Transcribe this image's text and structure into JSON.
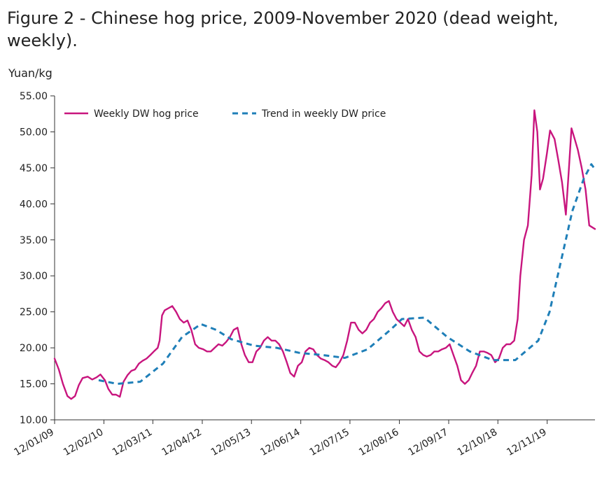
{
  "chart_data": {
    "type": "line",
    "title": "Figure 2 - Chinese hog price, 2009-November 2020 (dead weight, weekly).",
    "ylabel": "Yuan/kg",
    "ylim": [
      10,
      55
    ],
    "y_ticks": [
      "10.00",
      "15.00",
      "20.00",
      "25.00",
      "30.00",
      "35.00",
      "40.00",
      "45.00",
      "50.00",
      "55.00"
    ],
    "x_start": "2009-01-12",
    "x_end": "2020-11-30",
    "x_ticks": [
      "12/01/09",
      "12/02/10",
      "12/03/11",
      "12/04/12",
      "12/05/13",
      "12/06/14",
      "12/07/15",
      "12/08/16",
      "12/09/17",
      "12/10/18",
      "12/11/19"
    ],
    "x_tick_dates": [
      "2009-01-12",
      "2010-02-12",
      "2011-03-12",
      "2012-04-12",
      "2013-05-12",
      "2014-06-12",
      "2015-07-12",
      "2016-08-12",
      "2017-09-12",
      "2018-10-12",
      "2019-11-12"
    ],
    "grid": false,
    "legend": "top-left",
    "series": [
      {
        "name": "Weekly DW hog price",
        "color": "#c8157e",
        "dash": "solid",
        "points": [
          [
            "2009-01-12",
            18.5
          ],
          [
            "2009-02-15",
            17.0
          ],
          [
            "2009-03-20",
            15.0
          ],
          [
            "2009-04-25",
            13.3
          ],
          [
            "2009-05-25",
            12.9
          ],
          [
            "2009-06-25",
            13.3
          ],
          [
            "2009-07-25",
            14.8
          ],
          [
            "2009-08-25",
            15.8
          ],
          [
            "2009-10-05",
            16.0
          ],
          [
            "2009-11-10",
            15.6
          ],
          [
            "2009-12-15",
            15.9
          ],
          [
            "2010-01-15",
            16.3
          ],
          [
            "2010-02-20",
            15.5
          ],
          [
            "2010-03-20",
            14.3
          ],
          [
            "2010-04-20",
            13.5
          ],
          [
            "2010-05-20",
            13.5
          ],
          [
            "2010-06-20",
            13.2
          ],
          [
            "2010-07-20",
            15.3
          ],
          [
            "2010-08-20",
            16.2
          ],
          [
            "2010-09-20",
            16.8
          ],
          [
            "2010-10-20",
            17.0
          ],
          [
            "2010-11-20",
            17.8
          ],
          [
            "2010-12-20",
            18.2
          ],
          [
            "2011-01-20",
            18.5
          ],
          [
            "2011-02-20",
            19.0
          ],
          [
            "2011-03-20",
            19.5
          ],
          [
            "2011-04-20",
            20.0
          ],
          [
            "2011-05-05",
            21.0
          ],
          [
            "2011-05-25",
            24.5
          ],
          [
            "2011-06-15",
            25.2
          ],
          [
            "2011-07-15",
            25.5
          ],
          [
            "2011-08-15",
            25.8
          ],
          [
            "2011-09-15",
            25.0
          ],
          [
            "2011-10-15",
            24.0
          ],
          [
            "2011-11-15",
            23.5
          ],
          [
            "2011-12-15",
            23.8
          ],
          [
            "2012-01-15",
            22.5
          ],
          [
            "2012-02-15",
            20.5
          ],
          [
            "2012-03-15",
            20.0
          ],
          [
            "2012-04-20",
            19.8
          ],
          [
            "2012-05-20",
            19.5
          ],
          [
            "2012-06-20",
            19.5
          ],
          [
            "2012-07-20",
            20.0
          ],
          [
            "2012-08-20",
            20.5
          ],
          [
            "2012-09-20",
            20.3
          ],
          [
            "2012-10-20",
            20.8
          ],
          [
            "2012-11-20",
            21.5
          ],
          [
            "2012-12-20",
            22.5
          ],
          [
            "2013-01-20",
            22.8
          ],
          [
            "2013-02-20",
            20.5
          ],
          [
            "2013-03-20",
            19.0
          ],
          [
            "2013-04-20",
            18.0
          ],
          [
            "2013-05-20",
            18.0
          ],
          [
            "2013-06-20",
            19.5
          ],
          [
            "2013-07-20",
            20.0
          ],
          [
            "2013-08-20",
            21.0
          ],
          [
            "2013-09-20",
            21.5
          ],
          [
            "2013-10-20",
            21.0
          ],
          [
            "2013-11-20",
            21.0
          ],
          [
            "2013-12-20",
            20.5
          ],
          [
            "2014-01-20",
            19.5
          ],
          [
            "2014-02-20",
            18.0
          ],
          [
            "2014-03-20",
            16.5
          ],
          [
            "2014-04-20",
            16.0
          ],
          [
            "2014-05-20",
            17.5
          ],
          [
            "2014-06-20",
            18.0
          ],
          [
            "2014-07-20",
            19.5
          ],
          [
            "2014-08-20",
            20.0
          ],
          [
            "2014-09-20",
            19.8
          ],
          [
            "2014-10-20",
            19.0
          ],
          [
            "2014-11-20",
            18.5
          ],
          [
            "2014-12-20",
            18.3
          ],
          [
            "2015-01-20",
            18.0
          ],
          [
            "2015-02-20",
            17.5
          ],
          [
            "2015-03-20",
            17.3
          ],
          [
            "2015-04-20",
            18.0
          ],
          [
            "2015-05-20",
            19.0
          ],
          [
            "2015-06-20",
            21.0
          ],
          [
            "2015-07-20",
            23.5
          ],
          [
            "2015-08-20",
            23.5
          ],
          [
            "2015-09-20",
            22.5
          ],
          [
            "2015-10-20",
            22.0
          ],
          [
            "2015-11-20",
            22.5
          ],
          [
            "2015-12-20",
            23.5
          ],
          [
            "2016-01-20",
            24.0
          ],
          [
            "2016-02-20",
            25.0
          ],
          [
            "2016-03-20",
            25.5
          ],
          [
            "2016-04-20",
            26.2
          ],
          [
            "2016-05-20",
            26.5
          ],
          [
            "2016-06-20",
            25.0
          ],
          [
            "2016-07-20",
            24.0
          ],
          [
            "2016-08-20",
            23.5
          ],
          [
            "2016-09-20",
            23.0
          ],
          [
            "2016-10-20",
            24.0
          ],
          [
            "2016-11-20",
            22.5
          ],
          [
            "2016-12-20",
            21.5
          ],
          [
            "2017-01-20",
            19.5
          ],
          [
            "2017-02-20",
            19.0
          ],
          [
            "2017-03-20",
            18.8
          ],
          [
            "2017-04-20",
            19.0
          ],
          [
            "2017-05-20",
            19.5
          ],
          [
            "2017-06-20",
            19.5
          ],
          [
            "2017-07-20",
            19.8
          ],
          [
            "2017-08-20",
            20.0
          ],
          [
            "2017-09-20",
            20.5
          ],
          [
            "2017-10-20",
            19.0
          ],
          [
            "2017-11-20",
            17.5
          ],
          [
            "2017-12-20",
            15.5
          ],
          [
            "2018-01-20",
            15.0
          ],
          [
            "2018-02-20",
            15.5
          ],
          [
            "2018-03-20",
            16.5
          ],
          [
            "2018-04-20",
            17.5
          ],
          [
            "2018-05-20",
            19.5
          ],
          [
            "2018-06-20",
            19.5
          ],
          [
            "2018-07-20",
            19.3
          ],
          [
            "2018-08-20",
            19.0
          ],
          [
            "2018-09-20",
            18.0
          ],
          [
            "2018-10-20",
            18.5
          ],
          [
            "2018-11-20",
            20.0
          ],
          [
            "2018-12-20",
            20.5
          ],
          [
            "2019-01-20",
            20.5
          ],
          [
            "2019-02-20",
            21.0
          ],
          [
            "2019-03-20",
            24.0
          ],
          [
            "2019-04-10",
            30.0
          ],
          [
            "2019-05-10",
            35.0
          ],
          [
            "2019-06-10",
            37.0
          ],
          [
            "2019-07-10",
            44.0
          ],
          [
            "2019-08-01",
            53.0
          ],
          [
            "2019-08-25",
            50.0
          ],
          [
            "2019-09-15",
            42.0
          ],
          [
            "2019-10-10",
            43.5
          ],
          [
            "2019-11-10",
            47.0
          ],
          [
            "2019-12-05",
            50.2
          ],
          [
            "2020-01-10",
            49.0
          ],
          [
            "2020-02-10",
            46.0
          ],
          [
            "2020-03-10",
            43.0
          ],
          [
            "2020-04-10",
            38.5
          ],
          [
            "2020-05-05",
            45.0
          ],
          [
            "2020-05-25",
            50.5
          ],
          [
            "2020-06-20",
            49.0
          ],
          [
            "2020-07-15",
            47.5
          ],
          [
            "2020-08-15",
            45.0
          ],
          [
            "2020-09-15",
            42.0
          ],
          [
            "2020-10-15",
            37.0
          ],
          [
            "2020-11-30",
            36.5
          ]
        ]
      },
      {
        "name": "Trend in weekly DW price",
        "color": "#1f7fb8",
        "dash": "dashed",
        "points": [
          [
            "2010-01-01",
            15.5
          ],
          [
            "2010-06-01",
            15.0
          ],
          [
            "2010-12-01",
            15.3
          ],
          [
            "2011-06-01",
            17.8
          ],
          [
            "2011-11-01",
            21.5
          ],
          [
            "2012-04-01",
            23.3
          ],
          [
            "2012-08-01",
            22.5
          ],
          [
            "2012-12-01",
            21.2
          ],
          [
            "2013-06-01",
            20.3
          ],
          [
            "2013-12-01",
            20.0
          ],
          [
            "2014-06-01",
            19.3
          ],
          [
            "2014-12-01",
            19.0
          ],
          [
            "2015-06-01",
            18.6
          ],
          [
            "2015-12-01",
            19.8
          ],
          [
            "2016-06-01",
            22.5
          ],
          [
            "2016-09-01",
            24.0
          ],
          [
            "2017-03-01",
            24.2
          ],
          [
            "2017-09-01",
            21.5
          ],
          [
            "2018-03-01",
            19.5
          ],
          [
            "2018-09-01",
            18.3
          ],
          [
            "2019-03-01",
            18.3
          ],
          [
            "2019-09-01",
            21.0
          ],
          [
            "2019-12-01",
            25.0
          ],
          [
            "2020-03-01",
            32.0
          ],
          [
            "2020-06-01",
            39.0
          ],
          [
            "2020-09-01",
            43.5
          ],
          [
            "2020-11-01",
            45.5
          ],
          [
            "2020-11-30",
            44.8
          ]
        ]
      }
    ]
  }
}
